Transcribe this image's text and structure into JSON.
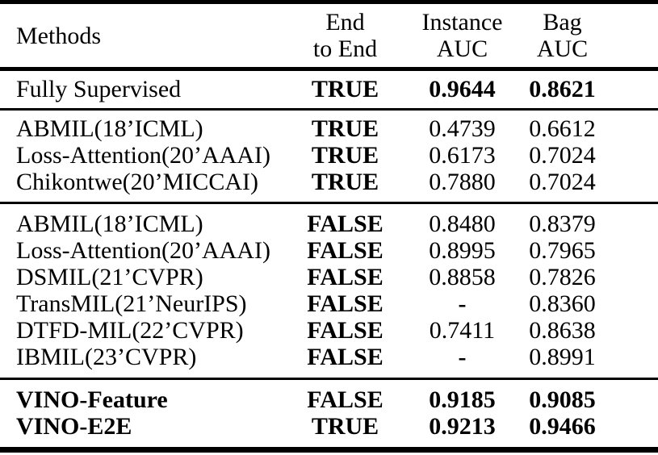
{
  "table": {
    "colors": {
      "text": "#000000",
      "background": "#ffffff",
      "rule": "#000000"
    },
    "headers": [
      [
        "Methods"
      ],
      [
        "End",
        "to End"
      ],
      [
        "Instance",
        "AUC"
      ],
      [
        "Bag",
        "AUC"
      ]
    ],
    "sections": [
      {
        "name": "fully-supervised",
        "rows": [
          [
            "Fully Supervised",
            "TRUE",
            "0.9644",
            "0.8621"
          ]
        ]
      },
      {
        "name": "end-to-end-true-baselines",
        "rows": [
          [
            "ABMIL(18’ICML)",
            "TRUE",
            "0.4739",
            "0.6612"
          ],
          [
            "Loss-Attention(20’AAAI)",
            "TRUE",
            "0.6173",
            "0.7024"
          ],
          [
            "Chikontwe(20’MICCAI)",
            "TRUE",
            "0.7880",
            "0.7024"
          ]
        ]
      },
      {
        "name": "end-to-end-false-baselines",
        "rows": [
          [
            "ABMIL(18’ICML)",
            "FALSE",
            "0.8480",
            "0.8379"
          ],
          [
            "Loss-Attention(20’AAAI)",
            "FALSE",
            "0.8995",
            "0.7965"
          ],
          [
            "DSMIL(21’CVPR)",
            "FALSE",
            "0.8858",
            "0.7826"
          ],
          [
            "TransMIL(21’NeurIPS)",
            "FALSE",
            "-",
            "0.8360"
          ],
          [
            "DTFD-MIL(22’CVPR)",
            "FALSE",
            "0.7411",
            "0.8638"
          ],
          [
            "IBMIL(23’CVPR)",
            "FALSE",
            "-",
            "0.8991"
          ]
        ]
      },
      {
        "name": "vino-methods",
        "rows": [
          [
            "VINO-Feature",
            "FALSE",
            "0.9185",
            "0.9085"
          ],
          [
            "VINO-E2E",
            "TRUE",
            "0.9213",
            "0.9466"
          ]
        ]
      }
    ]
  }
}
